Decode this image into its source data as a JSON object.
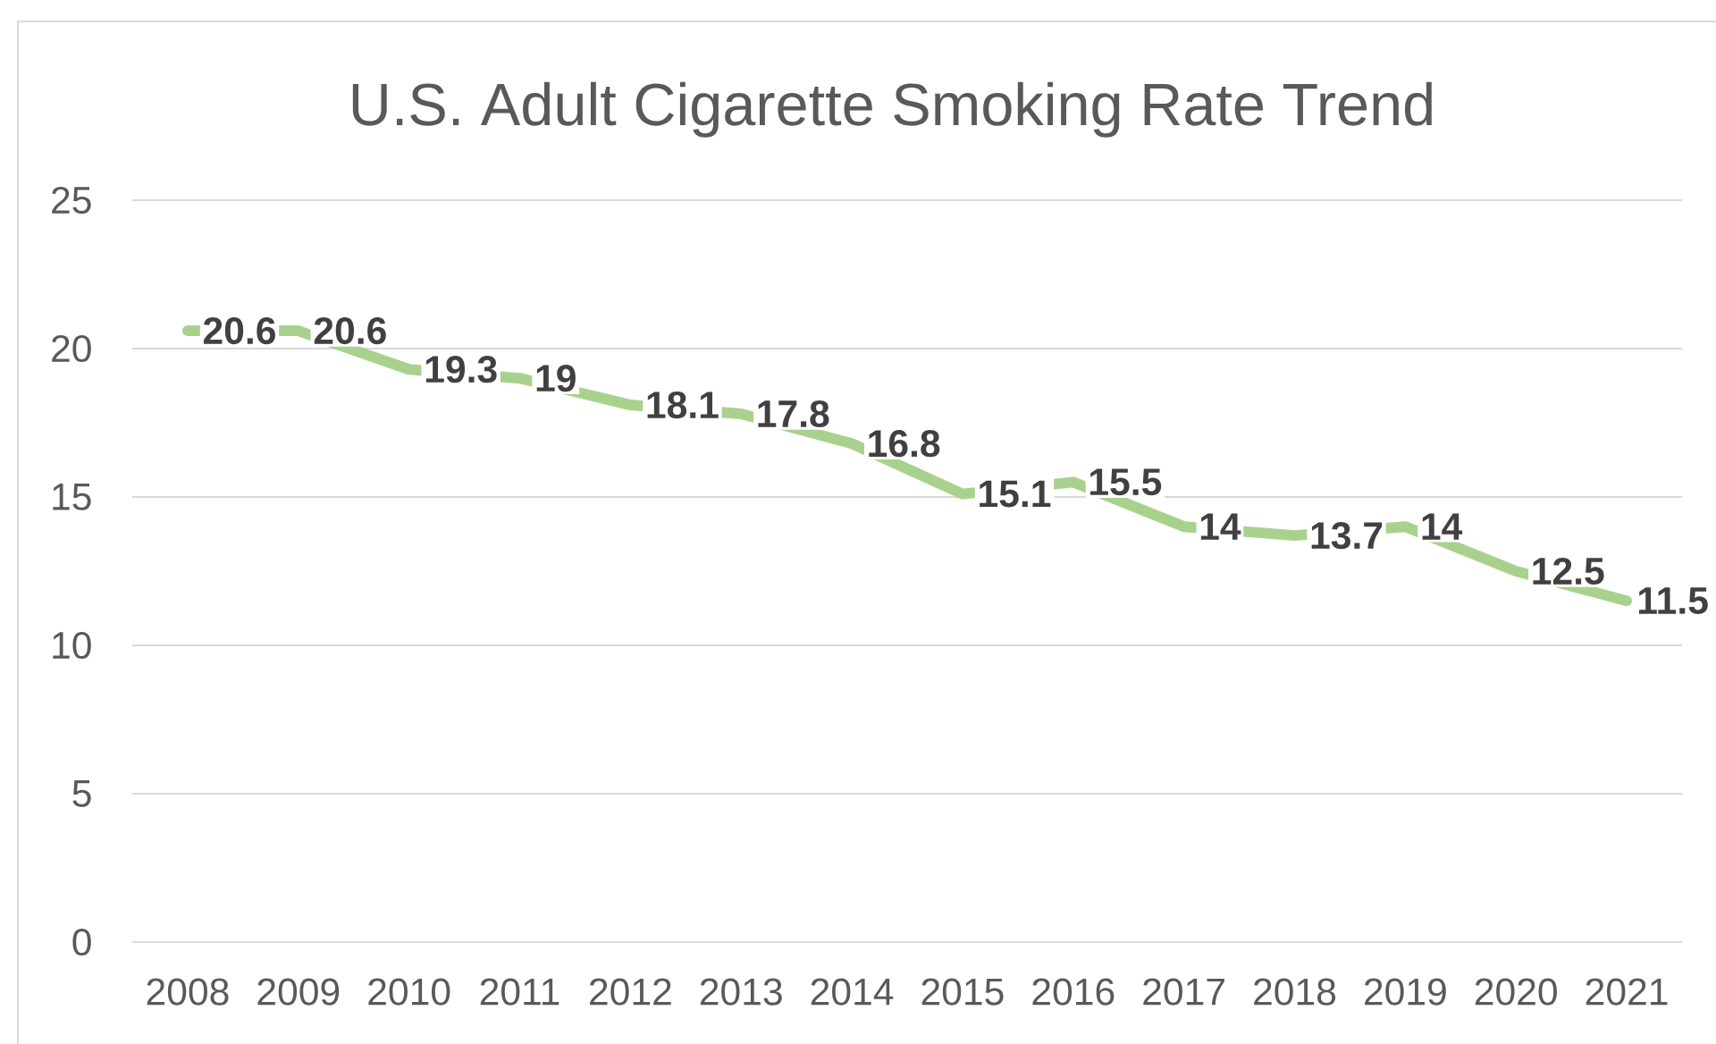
{
  "chart_data": {
    "type": "line",
    "title": "U.S. Adult Cigarette Smoking Rate Trend",
    "categories": [
      "2008",
      "2009",
      "2010",
      "2011",
      "2012",
      "2013",
      "2014",
      "2015",
      "2016",
      "2017",
      "2018",
      "2019",
      "2020",
      "2021"
    ],
    "series": [
      {
        "color": "#a9d18e",
        "values": [
          20.6,
          20.6,
          19.3,
          19,
          18.1,
          17.8,
          16.8,
          15.1,
          15.5,
          14,
          13.7,
          14,
          12.5,
          11.5
        ]
      }
    ],
    "ylim": [
      0,
      25
    ],
    "yticks": [
      0,
      5,
      10,
      15,
      20,
      25
    ],
    "grid": "y",
    "data_labels": true,
    "marker": "none",
    "line_style": "solid"
  }
}
